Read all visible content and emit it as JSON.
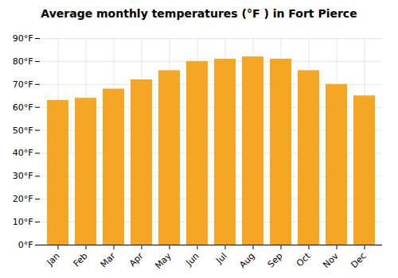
{
  "chart_data": {
    "type": "bar",
    "title": "Average monthly temperatures (°F ) in Fort Pierce",
    "categories": [
      "Jan",
      "Feb",
      "Mar",
      "Apr",
      "May",
      "Jun",
      "Jul",
      "Aug",
      "Sep",
      "Oct",
      "Nov",
      "Dec"
    ],
    "values": [
      63,
      64,
      68,
      72,
      76,
      80,
      81,
      82,
      81,
      76,
      70,
      65
    ],
    "color": "#F5A623",
    "ylim": [
      0,
      90
    ],
    "yticks": [
      {
        "value": 0,
        "label": "0°F"
      },
      {
        "value": 10,
        "label": "10°F"
      },
      {
        "value": 20,
        "label": "20°F"
      },
      {
        "value": 30,
        "label": "30°F"
      },
      {
        "value": 40,
        "label": "40°F"
      },
      {
        "value": 50,
        "label": "50°F"
      },
      {
        "value": 60,
        "label": "60°F"
      },
      {
        "value": 70,
        "label": "70°F"
      },
      {
        "value": 80,
        "label": "80°F"
      },
      {
        "value": 90,
        "label": "90°F"
      }
    ],
    "grid": true
  }
}
